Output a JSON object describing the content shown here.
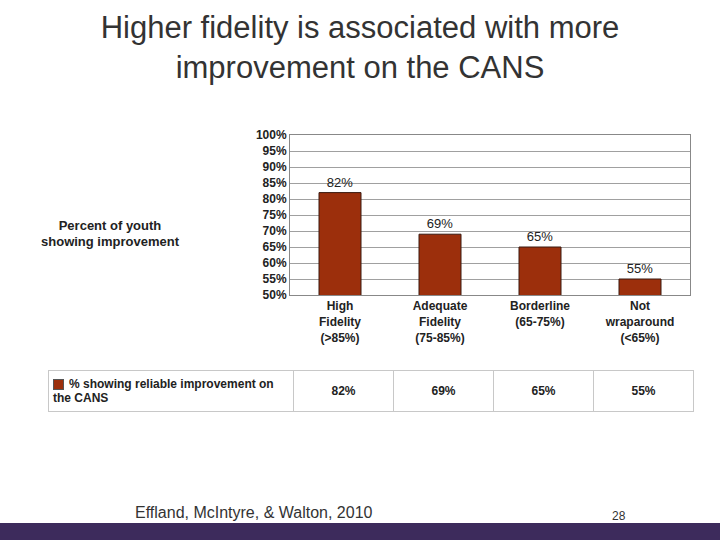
{
  "chart_data": {
    "type": "bar",
    "title": "Higher fidelity is associated with more improvement on the CANS",
    "y_label": "Percent of youth showing improvement",
    "categories": [
      "High Fidelity (>85%)",
      "Adequate Fidelity (75-85%)",
      "Borderline (65-75%)",
      "Not wraparound (<65%)"
    ],
    "series": [
      {
        "name": "% showing reliable improvement on the CANS",
        "color": "#9c2f0c",
        "values": [
          82,
          69,
          65,
          55
        ],
        "value_labels": [
          "82%",
          "69%",
          "65%",
          "55%"
        ]
      }
    ],
    "ylim": [
      50,
      100
    ],
    "yticks": [
      {
        "value": 50,
        "label": "50%"
      },
      {
        "value": 55,
        "label": "55%"
      },
      {
        "value": 60,
        "label": "60%"
      },
      {
        "value": 65,
        "label": "65%"
      },
      {
        "value": 70,
        "label": "70%"
      },
      {
        "value": 75,
        "label": "75%"
      },
      {
        "value": 80,
        "label": "80%"
      },
      {
        "value": 85,
        "label": "85%"
      },
      {
        "value": 90,
        "label": "90%"
      },
      {
        "value": 95,
        "label": "95%"
      },
      {
        "value": 100,
        "label": "100%"
      }
    ],
    "grid": true,
    "data_labels": true,
    "annotations": [
      "Effland, McIntyre, & Walton, 2010",
      "28"
    ]
  }
}
